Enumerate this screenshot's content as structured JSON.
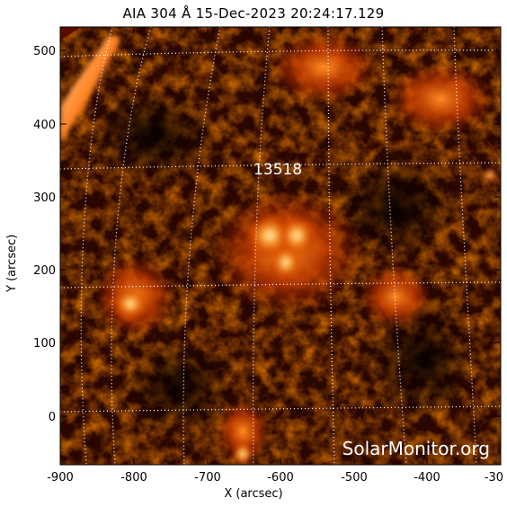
{
  "title": "AIA 304 Å 15-Dec-2023 20:24:17.129",
  "xlabel": "X (arcsec)",
  "ylabel": "Y (arcsec)",
  "x_ticks": [
    "-900",
    "-800",
    "-700",
    "-600",
    "-500",
    "-400",
    "-30"
  ],
  "y_ticks": [
    "500",
    "400",
    "300",
    "200",
    "100",
    "0"
  ],
  "active_region": "13518",
  "watermark": "SolarMonitor.org",
  "colors": {
    "background": "#ffffff",
    "sun_dark": "#1a0300",
    "sun_mid": "#b02a00",
    "sun_bright": "#ffd080",
    "grid": "#ffffff"
  }
}
